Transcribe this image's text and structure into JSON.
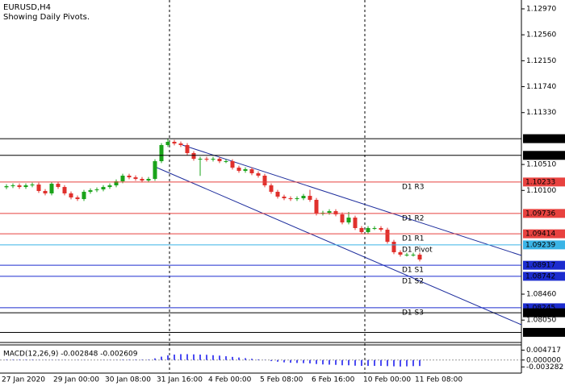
{
  "chart_data": [
    {
      "type": "candlestick",
      "title": "EURUSD,H4",
      "subtitle": "Showing Daily Pivots.",
      "categories": [
        "27 Jan 2020",
        null,
        null,
        null,
        null,
        null,
        null,
        null,
        "29 Jan 00:00",
        null,
        null,
        null,
        null,
        null,
        null,
        null,
        "30 Jan 08:00",
        null,
        null,
        null,
        null,
        null,
        null,
        null,
        "31 Jan 16:00",
        null,
        null,
        null,
        null,
        null,
        null,
        null,
        "4 Feb 00:00",
        null,
        null,
        null,
        null,
        null,
        null,
        null,
        "5 Feb 08:00",
        null,
        null,
        null,
        null,
        null,
        null,
        null,
        "6 Feb 16:00",
        null,
        null,
        null,
        null,
        null,
        null,
        null,
        "10 Feb 00:00",
        null,
        null,
        null,
        null,
        null,
        null,
        null,
        "11 Feb 08:00"
      ],
      "open": [
        1.1015,
        1.10167,
        1.1018,
        1.10154,
        1.1018,
        1.10193,
        1.10091,
        1.10053,
        1.10205,
        1.10154,
        1.10053,
        1.09989,
        1.09963,
        1.10078,
        1.10103,
        1.10116,
        1.10154,
        1.1018,
        1.10244,
        1.10333,
        1.10307,
        1.10282,
        1.10256,
        1.10282,
        1.10562,
        1.10817,
        1.10868,
        1.10842,
        1.10817,
        1.1069,
        1.106,
        1.106,
        1.10588,
        1.106,
        1.10562,
        1.10562,
        1.1046,
        1.10409,
        1.10435,
        1.10371,
        1.10333,
        1.1018,
        1.10078,
        1.10002,
        1.09976,
        1.09963,
        1.09976,
        1.10014,
        1.09951,
        1.09734,
        1.09747,
        1.09772,
        1.09721,
        1.09594,
        1.0967,
        1.09505,
        1.09441,
        1.09505,
        1.09505,
        1.09479,
        1.09288,
        1.09123,
        1.09084,
        1.09084,
        1.09084
      ],
      "high": [
        1.10197,
        1.1021,
        1.1021,
        1.1021,
        1.10223,
        1.10223,
        1.10121,
        1.10235,
        1.10235,
        1.10184,
        1.10083,
        1.10019,
        1.10108,
        1.10133,
        1.10146,
        1.10184,
        1.1021,
        1.10274,
        1.10363,
        1.10363,
        1.10337,
        1.10312,
        1.10312,
        1.10592,
        1.10847,
        1.10918,
        1.10898,
        1.10872,
        1.10847,
        1.1072,
        1.1063,
        1.1063,
        1.1063,
        1.1063,
        1.10592,
        1.10592,
        1.1049,
        1.10465,
        1.10465,
        1.10401,
        1.10363,
        1.1021,
        1.10108,
        1.10032,
        1.10006,
        1.10006,
        1.10044,
        1.1011,
        1.09981,
        1.09777,
        1.09802,
        1.09802,
        1.09751,
        1.0976,
        1.097,
        1.09535,
        1.09535,
        1.09535,
        1.09535,
        1.09509,
        1.09318,
        1.09153,
        1.09114,
        1.09114,
        1.09114
      ],
      "low": [
        1.1012,
        1.10137,
        1.10124,
        1.10124,
        1.1015,
        1.10061,
        1.10023,
        1.10023,
        1.10124,
        1.10023,
        1.09959,
        1.09933,
        1.09933,
        1.10048,
        1.10073,
        1.10086,
        1.10124,
        1.1015,
        1.10214,
        1.10277,
        1.10252,
        1.10226,
        1.10226,
        1.10252,
        1.10532,
        1.10787,
        1.10812,
        1.10787,
        1.1066,
        1.1057,
        1.1033,
        1.10558,
        1.10558,
        1.10532,
        1.10532,
        1.1043,
        1.10379,
        1.10379,
        1.10341,
        1.10303,
        1.1015,
        1.10048,
        1.09972,
        1.09946,
        1.09933,
        1.09933,
        1.09946,
        1.09921,
        1.09704,
        1.09704,
        1.09717,
        1.09691,
        1.09564,
        1.09564,
        1.09475,
        1.09411,
        1.09411,
        1.09475,
        1.09449,
        1.09258,
        1.09093,
        1.09054,
        1.09054,
        1.09054,
        1.08978
      ],
      "close": [
        1.10167,
        1.1018,
        1.10154,
        1.1018,
        1.10193,
        1.10091,
        1.10053,
        1.10205,
        1.10154,
        1.10053,
        1.09989,
        1.09963,
        1.10078,
        1.10103,
        1.10116,
        1.10154,
        1.1018,
        1.10244,
        1.10333,
        1.10307,
        1.10282,
        1.10256,
        1.10282,
        1.10562,
        1.10817,
        1.10868,
        1.10842,
        1.10817,
        1.1069,
        1.106,
        1.106,
        1.10588,
        1.106,
        1.10562,
        1.10562,
        1.1046,
        1.10409,
        1.10435,
        1.10371,
        1.10333,
        1.1018,
        1.10078,
        1.10002,
        1.09976,
        1.09963,
        1.09976,
        1.10014,
        1.09951,
        1.09734,
        1.09747,
        1.09772,
        1.09721,
        1.09594,
        1.0967,
        1.09505,
        1.09441,
        1.09505,
        1.09505,
        1.09479,
        1.09288,
        1.09123,
        1.09084,
        1.09084,
        1.09084,
        1.09008
      ],
      "up_color": "#1aa31a",
      "down_color": "#e0302c",
      "ylim": [
        1.07696,
        1.1311
      ],
      "yticks": [
        {
          "value": 1.1297,
          "label": "1.12970"
        },
        {
          "value": 1.1256,
          "label": "1.12560"
        },
        {
          "value": 1.1215,
          "label": "1.12150"
        },
        {
          "value": 1.1174,
          "label": "1.11740"
        },
        {
          "value": 1.1133,
          "label": "1.11330"
        },
        {
          "value": 1.1051,
          "label": "1.10510"
        },
        {
          "value": 1.101,
          "label": "1.10100"
        },
        {
          "value": 1.0846,
          "label": "1.08460"
        },
        {
          "value": 1.0805,
          "label": "1.08050"
        }
      ],
      "levels": [
        {
          "value": 1.10918,
          "color": "#000000"
        },
        {
          "value": 1.10654,
          "color": "#000000"
        },
        {
          "value": 1.10233,
          "name": "D1 R3",
          "color": "#e8423f"
        },
        {
          "value": 1.09736,
          "name": "D1 R2",
          "color": "#e8423f"
        },
        {
          "value": 1.09414,
          "name": "D1 R1",
          "color": "#e8423f"
        },
        {
          "value": 1.09239,
          "name": "D1 Pivot",
          "color": "#3ab4e6"
        },
        {
          "value": 1.08917,
          "name": "D1 S1",
          "color": "#1c2ccf"
        },
        {
          "value": 1.08742,
          "name": "D1 S2",
          "color": "#1c2ccf"
        },
        {
          "value": 1.08245,
          "name": "D1 S3",
          "color": "#1c2ccf"
        },
        {
          "value": 1.08166,
          "color": "#000000"
        },
        {
          "value": 1.07856,
          "color": "#000000"
        }
      ]
    },
    {
      "type": "bar",
      "title": "MACD(12,26,9) -0.002848 -0.002609",
      "color": "#1010ee",
      "values": [
        0.0002,
        0.0002,
        0.0002,
        0.0002,
        0.0002,
        0.0001,
        0.0001,
        0.0001,
        0.0001,
        0.0001,
        0.0,
        -0.0001,
        -0.0001,
        0.0,
        0.0,
        0.0001,
        0.0001,
        0.0001,
        0.0002,
        0.0002,
        0.0002,
        0.0002,
        0.0002,
        0.0008,
        0.0016,
        0.0022,
        0.0026,
        0.0028,
        0.0028,
        0.0027,
        0.0026,
        0.0025,
        0.0023,
        0.0021,
        0.0018,
        0.0015,
        0.0012,
        0.0009,
        0.0006,
        0.0003,
        -0.0001,
        -0.0005,
        -0.0008,
        -0.0011,
        -0.0013,
        -0.0014,
        -0.0015,
        -0.0016,
        -0.0019,
        -0.0021,
        -0.0022,
        -0.0023,
        -0.0025,
        -0.0025,
        -0.0027,
        -0.0028,
        -0.0028,
        -0.0028,
        -0.0028,
        -0.0029,
        -0.003,
        -0.0031,
        -0.003,
        -0.0029,
        -0.002848
      ],
      "ylim": [
        -0.00623,
        0.00682
      ],
      "yticks": [
        0.004717,
        {
          "value": 0,
          "label": "0.000000"
        },
        -0.003282
      ]
    }
  ]
}
